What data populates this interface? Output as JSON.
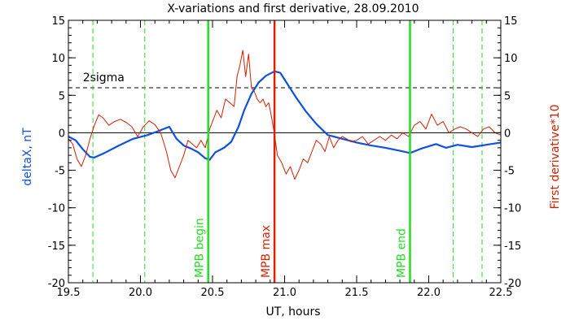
{
  "chart_data": {
    "type": "line",
    "title": "X-variations and first derivative, 28.09.2010",
    "xlabel": "UT, hours",
    "ylabel_left": "deltaX, nT",
    "ylabel_right": "First derivative*10",
    "xlim": [
      19.5,
      22.5
    ],
    "ylim": [
      -20,
      15
    ],
    "x_ticks": [
      "19.5",
      "20.0",
      "20.5",
      "21.0",
      "21.5",
      "22.0",
      "22.5"
    ],
    "y_ticks": [
      "15",
      "10",
      "5",
      "0",
      "-5",
      "-10",
      "-15",
      "-20"
    ],
    "sigma_level": 6,
    "sigma_label": "2sigma",
    "colors": {
      "deltaX": "#1050e0",
      "derivative": "#d02000",
      "mpb_lines": "#22dd22",
      "mpb_max": "#dd2200",
      "axes": "#000000"
    },
    "vertical_markers": [
      {
        "x": 20.47,
        "label": "MPB begin",
        "color": "#22dd22"
      },
      {
        "x": 20.93,
        "label": "MPB max",
        "color": "#dd2200"
      },
      {
        "x": 21.87,
        "label": "MPB end",
        "color": "#22dd22"
      }
    ],
    "dashed_verticals": [
      19.67,
      20.03,
      22.17,
      22.37
    ],
    "series": [
      {
        "name": "deltaX, nT",
        "color": "#1050e0",
        "x": [
          19.5,
          19.55,
          19.6,
          19.65,
          19.68,
          19.75,
          19.85,
          19.95,
          20.05,
          20.12,
          20.2,
          20.25,
          20.3,
          20.35,
          20.4,
          20.45,
          20.48,
          20.52,
          20.58,
          20.63,
          20.68,
          20.72,
          20.77,
          20.82,
          20.87,
          20.93,
          20.97,
          21.02,
          21.08,
          21.15,
          21.22,
          21.3,
          21.4,
          21.5,
          21.6,
          21.7,
          21.8,
          21.87,
          21.95,
          22.05,
          22.12,
          22.2,
          22.3,
          22.4,
          22.5
        ],
        "values": [
          -0.5,
          -1.0,
          -2.2,
          -3.2,
          -3.3,
          -2.7,
          -1.7,
          -0.8,
          -0.3,
          0.2,
          0.8,
          -0.8,
          -1.7,
          -2.1,
          -2.6,
          -3.4,
          -3.6,
          -2.6,
          -2.0,
          -1.2,
          0.8,
          3.0,
          5.2,
          6.7,
          7.6,
          8.2,
          8.0,
          6.5,
          4.7,
          2.8,
          1.2,
          -0.3,
          -0.8,
          -1.3,
          -1.7,
          -2.0,
          -2.4,
          -2.7,
          -2.1,
          -1.5,
          -2.0,
          -1.6,
          -1.9,
          -1.6,
          -1.3
        ]
      },
      {
        "name": "First derivative*10",
        "color": "#d02000",
        "x": [
          19.5,
          19.53,
          19.56,
          19.59,
          19.62,
          19.65,
          19.68,
          19.71,
          19.74,
          19.78,
          19.82,
          19.86,
          19.9,
          19.94,
          19.98,
          20.02,
          20.06,
          20.1,
          20.14,
          20.18,
          20.21,
          20.24,
          20.27,
          20.3,
          20.33,
          20.36,
          20.39,
          20.42,
          20.45,
          20.48,
          20.5,
          20.53,
          20.56,
          20.59,
          20.62,
          20.65,
          20.67,
          20.69,
          20.71,
          20.73,
          20.75,
          20.77,
          20.79,
          20.81,
          20.83,
          20.85,
          20.87,
          20.89,
          20.91,
          20.93,
          20.95,
          20.98,
          21.01,
          21.04,
          21.07,
          21.1,
          21.13,
          21.16,
          21.19,
          21.22,
          21.25,
          21.28,
          21.31,
          21.34,
          21.37,
          21.4,
          21.43,
          21.46,
          21.5,
          21.54,
          21.58,
          21.62,
          21.66,
          21.7,
          21.74,
          21.78,
          21.82,
          21.86,
          21.9,
          21.94,
          21.98,
          22.02,
          22.06,
          22.1,
          22.14,
          22.18,
          22.22,
          22.26,
          22.3,
          22.34,
          22.38,
          22.42,
          22.46,
          22.5
        ],
        "values": [
          -0.8,
          -1.5,
          -3.5,
          -4.5,
          -3.0,
          -0.8,
          1.0,
          2.4,
          2.0,
          1.0,
          1.5,
          1.8,
          1.4,
          0.8,
          -0.5,
          0.8,
          1.6,
          1.1,
          0.0,
          -2.5,
          -5.0,
          -6.0,
          -4.5,
          -3.0,
          -1.0,
          -1.5,
          -2.0,
          -1.0,
          -2.0,
          0.5,
          1.5,
          3.0,
          2.0,
          4.5,
          4.0,
          3.5,
          7.5,
          9.0,
          11.0,
          7.5,
          10.5,
          6.0,
          5.5,
          4.5,
          4.0,
          4.5,
          3.5,
          4.0,
          2.0,
          -0.2,
          -3.0,
          -4.0,
          -5.5,
          -4.5,
          -6.2,
          -5.0,
          -3.5,
          -4.0,
          -2.5,
          -1.0,
          -1.5,
          -2.5,
          -0.5,
          -2.0,
          -1.0,
          -0.5,
          -0.8,
          -1.2,
          -1.0,
          -0.5,
          -1.5,
          -1.0,
          -0.5,
          -1.0,
          -0.3,
          -0.8,
          0.0,
          -0.5,
          1.0,
          1.5,
          0.5,
          2.5,
          1.0,
          1.5,
          0.0,
          0.5,
          0.8,
          0.5,
          0.0,
          -0.5,
          0.5,
          0.8,
          0.0,
          -0.3
        ]
      }
    ]
  }
}
